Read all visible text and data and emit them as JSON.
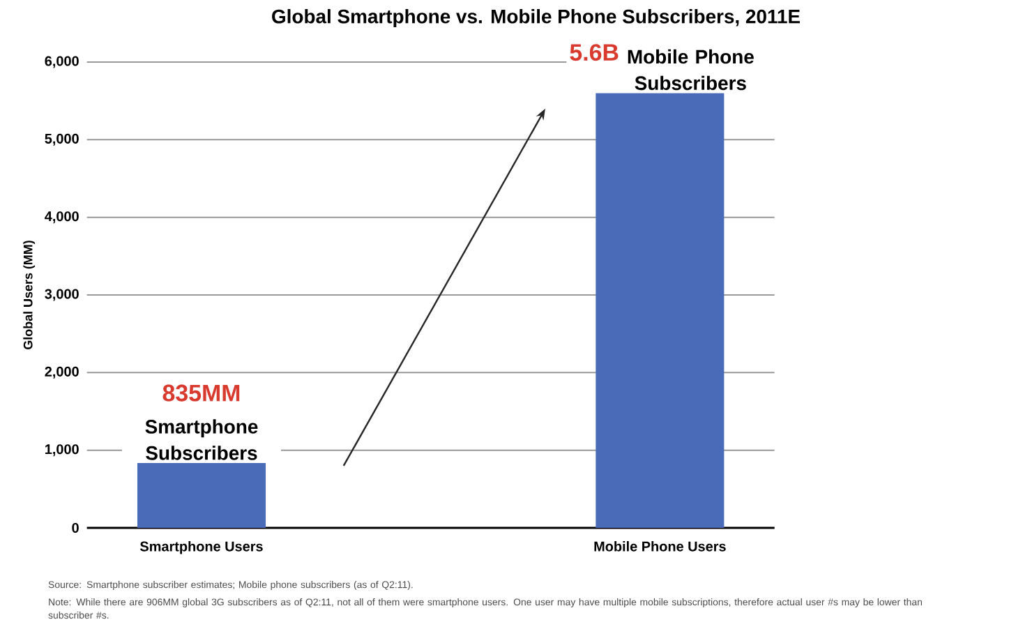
{
  "chart_data": {
    "type": "bar",
    "title": "Global Smartphone vs. Mobile Phone Subscribers, 2011E",
    "ylabel": "Global Users (MM)",
    "categories": [
      "Smartphone Users",
      "Mobile Phone Users"
    ],
    "values": [
      835,
      5600
    ],
    "color": "#4a6bb8",
    "ylim": [
      0,
      6000
    ],
    "yticks": [
      0,
      {
        "value": 1000,
        "label": "1,000"
      },
      {
        "value": 2000,
        "label": "2,000"
      },
      {
        "value": 3000,
        "label": "3,000"
      },
      {
        "value": 4000,
        "label": "4,000"
      },
      {
        "value": 5000,
        "label": "5,000"
      },
      {
        "value": 6000,
        "label": "6,000"
      }
    ],
    "grid": "y",
    "annotations": [
      {
        "text": "835MM",
        "x": "Smartphone Users",
        "y": 835
      },
      {
        "text": "Smartphone Subscribers",
        "x": "Smartphone Users",
        "y": 835
      },
      {
        "text": "5.6B",
        "x": "Mobile Phone Users",
        "y": 5600
      },
      {
        "text": "Mobile Phone Subscribers",
        "x": "Mobile Phone Users",
        "y": 5600
      },
      "Source: Smartphone subscriber estimates; Mobile phone subscribers (as of Q2:11).",
      "Note: While there are 906MM global 3G subscribers as of Q2:11, not all of them were smartphone users. One user may have multiple mobile subscriptions, therefore actual user #s may be lower than subscriber #s."
    ]
  }
}
